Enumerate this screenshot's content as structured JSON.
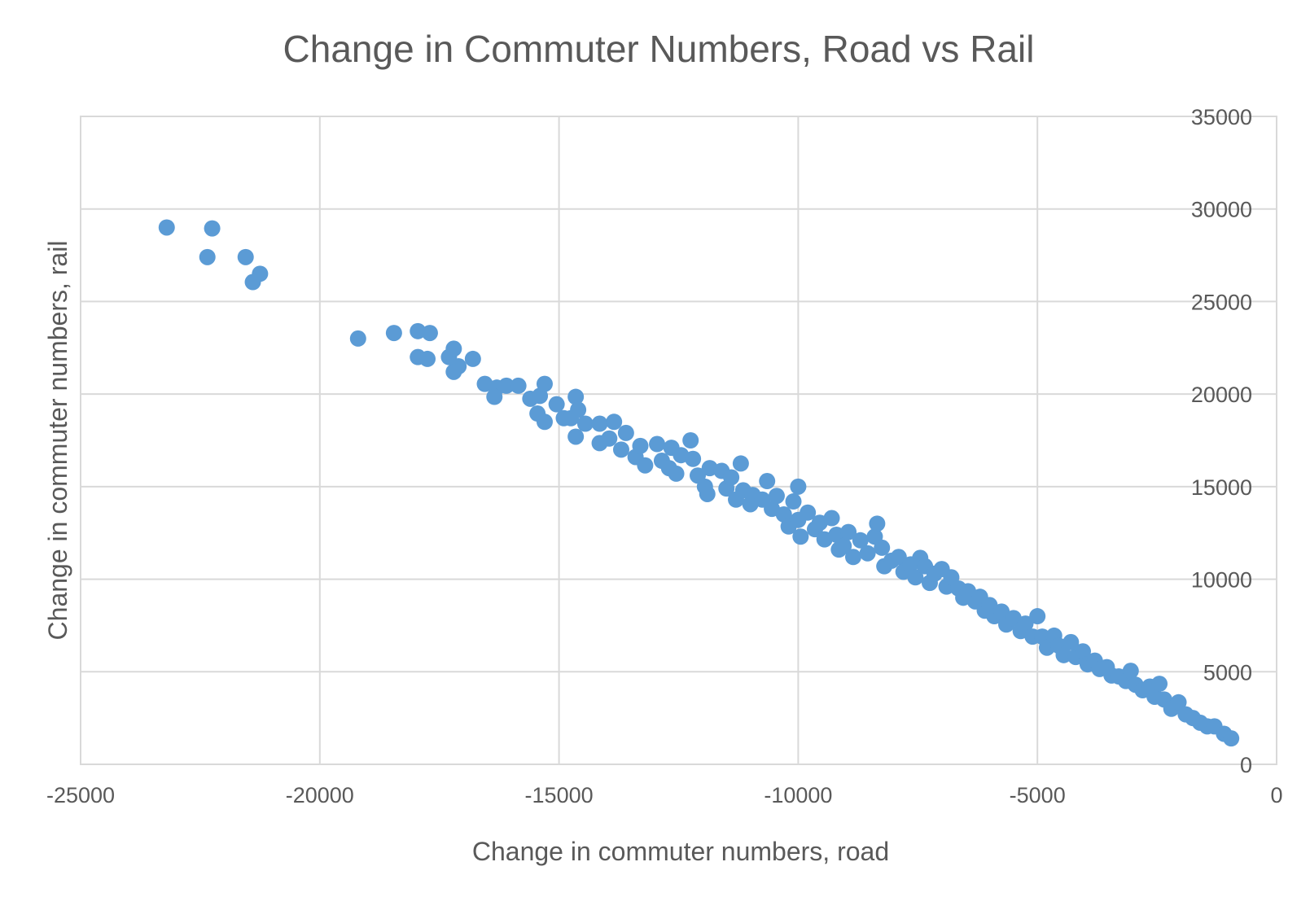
{
  "colors": {
    "point": "#5b9bd5",
    "grid": "#d9d9d9",
    "text": "#595959"
  },
  "chart_data": {
    "type": "scatter",
    "title": "Change in Commuter Numbers, Road vs Rail",
    "xlabel": "Change in commuter numbers, road",
    "ylabel": "Change in commuter numbers, rail",
    "xlim": [
      -25000,
      0
    ],
    "ylim": [
      0,
      35000
    ],
    "x_ticks": [
      "-25000",
      "-20000",
      "-15000",
      "-10000",
      "-5000",
      "0"
    ],
    "y_ticks": [
      "0",
      "5000",
      "10000",
      "15000",
      "20000",
      "25000",
      "30000",
      "35000"
    ],
    "y_axis_side": "right",
    "grid": true,
    "legend": "none",
    "series": [
      {
        "points": [
          [
            -23200,
            29000
          ],
          [
            -22250,
            28950
          ],
          [
            -22350,
            27400
          ],
          [
            -21550,
            27400
          ],
          [
            -21250,
            26500
          ],
          [
            -21400,
            26050
          ],
          [
            -19200,
            23000
          ],
          [
            -18450,
            23300
          ],
          [
            -17950,
            23400
          ],
          [
            -17700,
            23300
          ],
          [
            -17950,
            22000
          ],
          [
            -17750,
            21900
          ],
          [
            -17300,
            22000
          ],
          [
            -17200,
            22450
          ],
          [
            -17100,
            21500
          ],
          [
            -17200,
            21200
          ],
          [
            -16800,
            21900
          ],
          [
            -16550,
            20550
          ],
          [
            -16300,
            20350
          ],
          [
            -16350,
            19850
          ],
          [
            -16100,
            20450
          ],
          [
            -15850,
            20450
          ],
          [
            -15600,
            19750
          ],
          [
            -15400,
            19900
          ],
          [
            -15300,
            20550
          ],
          [
            -15450,
            18950
          ],
          [
            -15300,
            18500
          ],
          [
            -15050,
            19450
          ],
          [
            -14900,
            18700
          ],
          [
            -14650,
            19850
          ],
          [
            -14750,
            18700
          ],
          [
            -14600,
            19150
          ],
          [
            -14450,
            18400
          ],
          [
            -14650,
            17700
          ],
          [
            -14150,
            18400
          ],
          [
            -14150,
            17350
          ],
          [
            -13850,
            18500
          ],
          [
            -13950,
            17600
          ],
          [
            -13600,
            17900
          ],
          [
            -13700,
            17000
          ],
          [
            -13400,
            16600
          ],
          [
            -13300,
            17200
          ],
          [
            -13200,
            16150
          ],
          [
            -12950,
            17300
          ],
          [
            -12850,
            16400
          ],
          [
            -12650,
            17100
          ],
          [
            -12700,
            16000
          ],
          [
            -12550,
            15700
          ],
          [
            -12450,
            16700
          ],
          [
            -12250,
            17500
          ],
          [
            -12200,
            16500
          ],
          [
            -12100,
            15600
          ],
          [
            -11850,
            16000
          ],
          [
            -11950,
            15000
          ],
          [
            -11900,
            14600
          ],
          [
            -11600,
            15850
          ],
          [
            -11500,
            14900
          ],
          [
            -11400,
            15500
          ],
          [
            -11300,
            14300
          ],
          [
            -11200,
            16250
          ],
          [
            -11150,
            14800
          ],
          [
            -11000,
            14050
          ],
          [
            -10950,
            14550
          ],
          [
            -10750,
            14300
          ],
          [
            -10650,
            15300
          ],
          [
            -10550,
            13800
          ],
          [
            -10450,
            14500
          ],
          [
            -10300,
            13500
          ],
          [
            -10200,
            12850
          ],
          [
            -10100,
            14200
          ],
          [
            -10000,
            15000
          ],
          [
            -10000,
            13200
          ],
          [
            -9950,
            12300
          ],
          [
            -9800,
            13600
          ],
          [
            -9650,
            12700
          ],
          [
            -9550,
            13050
          ],
          [
            -9450,
            12150
          ],
          [
            -9300,
            13300
          ],
          [
            -9200,
            12400
          ],
          [
            -9150,
            11600
          ],
          [
            -9050,
            11800
          ],
          [
            -8950,
            12550
          ],
          [
            -8850,
            11200
          ],
          [
            -8700,
            12100
          ],
          [
            -8550,
            11400
          ],
          [
            -8400,
            12300
          ],
          [
            -8350,
            13000
          ],
          [
            -8250,
            11700
          ],
          [
            -8200,
            10700
          ],
          [
            -8050,
            11000
          ],
          [
            -7900,
            11200
          ],
          [
            -7800,
            10400
          ],
          [
            -7650,
            10800
          ],
          [
            -7550,
            10100
          ],
          [
            -7450,
            11150
          ],
          [
            -7350,
            10700
          ],
          [
            -7250,
            9800
          ],
          [
            -7150,
            10300
          ],
          [
            -7000,
            10550
          ],
          [
            -6900,
            9600
          ],
          [
            -6800,
            10100
          ],
          [
            -6650,
            9500
          ],
          [
            -6550,
            9000
          ],
          [
            -6450,
            9350
          ],
          [
            -6300,
            8800
          ],
          [
            -6200,
            9050
          ],
          [
            -6100,
            8300
          ],
          [
            -6000,
            8600
          ],
          [
            -5900,
            8000
          ],
          [
            -5750,
            8250
          ],
          [
            -5650,
            7550
          ],
          [
            -5500,
            7900
          ],
          [
            -5350,
            7200
          ],
          [
            -5250,
            7600
          ],
          [
            -5100,
            6900
          ],
          [
            -5000,
            8000
          ],
          [
            -4900,
            6900
          ],
          [
            -4800,
            6300
          ],
          [
            -4650,
            6950
          ],
          [
            -4550,
            6400
          ],
          [
            -4450,
            5900
          ],
          [
            -4300,
            6600
          ],
          [
            -4200,
            5800
          ],
          [
            -4050,
            6100
          ],
          [
            -3950,
            5400
          ],
          [
            -3800,
            5600
          ],
          [
            -3700,
            5150
          ],
          [
            -3550,
            5250
          ],
          [
            -3450,
            4800
          ],
          [
            -3300,
            4750
          ],
          [
            -3150,
            4500
          ],
          [
            -3050,
            5050
          ],
          [
            -2950,
            4300
          ],
          [
            -2800,
            4000
          ],
          [
            -2650,
            4200
          ],
          [
            -2550,
            3650
          ],
          [
            -2450,
            4350
          ],
          [
            -2350,
            3500
          ],
          [
            -2200,
            3000
          ],
          [
            -2050,
            3350
          ],
          [
            -1900,
            2700
          ],
          [
            -1750,
            2500
          ],
          [
            -1600,
            2250
          ],
          [
            -1450,
            2050
          ],
          [
            -1300,
            2050
          ],
          [
            -1100,
            1650
          ],
          [
            -950,
            1400
          ]
        ]
      }
    ]
  }
}
